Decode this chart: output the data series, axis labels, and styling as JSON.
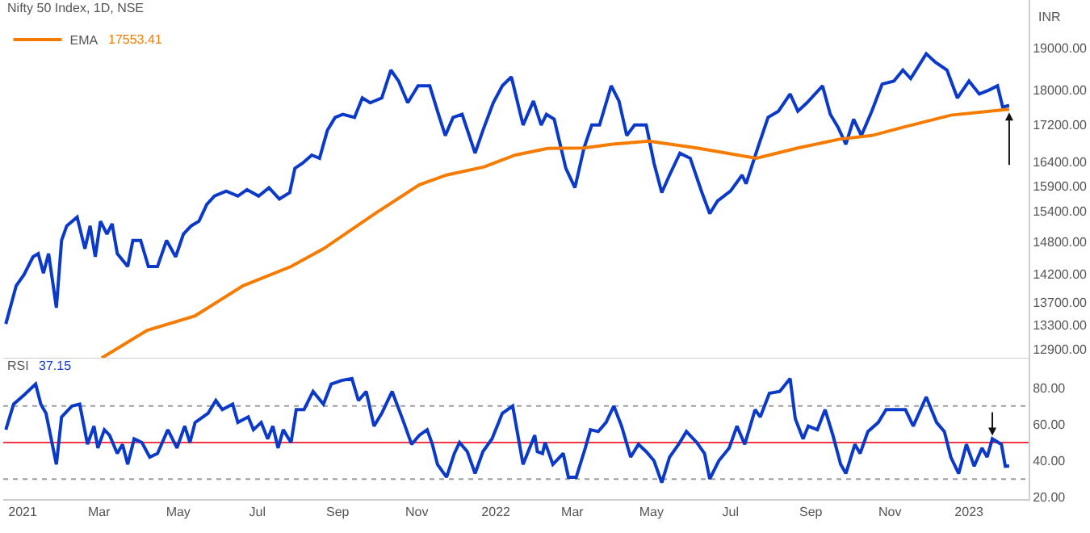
{
  "chart_data": [
    {
      "type": "line",
      "title": "Nifty 50 Index, 1D, NSE",
      "ylabel": "INR",
      "log": "y",
      "legend": "top left",
      "tick_labels": "y",
      "grid": false,
      "marker": "none",
      "line_style": "solid",
      "xlim": [
        "2020-12-17",
        "2023-02-16"
      ],
      "ylim": [
        12740,
        20200
      ],
      "yticks": [
        {
          "value": 12900,
          "label": "12900.00"
        },
        {
          "value": 13300,
          "label": "13300.00"
        },
        {
          "value": 13700,
          "label": "13700.00"
        },
        {
          "value": 14200,
          "label": "14200.00"
        },
        {
          "value": 14800,
          "label": "14800.00"
        },
        {
          "value": 15400,
          "label": "15400.00"
        },
        {
          "value": 15900,
          "label": "15900.00"
        },
        {
          "value": 16400,
          "label": "16400.00"
        },
        {
          "value": 17200,
          "label": "17200.00"
        },
        {
          "value": 18000,
          "label": "18000.00"
        },
        {
          "value": 19000,
          "label": "19000.00"
        }
      ],
      "annotations": [
        "17553.41"
      ],
      "series": [
        {
          "color": "#0b3ac8",
          "x": [
            "2020-12-19",
            "2020-12-27",
            "2021-01-02",
            "2021-01-09",
            "2021-01-13",
            "2021-01-17",
            "2021-01-21",
            "2021-01-27",
            "2021-01-31",
            "2021-02-04",
            "2021-02-12",
            "2021-02-18",
            "2021-02-22",
            "2021-02-26",
            "2021-03-02",
            "2021-03-07",
            "2021-03-11",
            "2021-03-15",
            "2021-03-23",
            "2021-03-27",
            "2021-04-02",
            "2021-04-08",
            "2021-04-15",
            "2021-04-22",
            "2021-04-29",
            "2021-05-05",
            "2021-05-11",
            "2021-05-17",
            "2021-05-23",
            "2021-05-29",
            "2021-06-07",
            "2021-06-16",
            "2021-06-23",
            "2021-07-02",
            "2021-07-10",
            "2021-07-18",
            "2021-07-26",
            "2021-07-30",
            "2021-08-05",
            "2021-08-12",
            "2021-08-18",
            "2021-08-24",
            "2021-08-30",
            "2021-09-05",
            "2021-09-14",
            "2021-09-20",
            "2021-09-26",
            "2021-10-05",
            "2021-10-12",
            "2021-10-18",
            "2021-10-25",
            "2021-11-02",
            "2021-11-11",
            "2021-11-17",
            "2021-11-23",
            "2021-11-29",
            "2021-12-06",
            "2021-12-16",
            "2021-12-22",
            "2021-12-30",
            "2022-01-06",
            "2022-01-13",
            "2022-01-22",
            "2022-01-30",
            "2022-02-05",
            "2022-02-09",
            "2022-02-15",
            "2022-02-24",
            "2022-03-03",
            "2022-03-10",
            "2022-03-16",
            "2022-03-22",
            "2022-03-31",
            "2022-04-06",
            "2022-04-12",
            "2022-04-18",
            "2022-04-27",
            "2022-05-03",
            "2022-05-09",
            "2022-05-15",
            "2022-05-23",
            "2022-05-31",
            "2022-06-09",
            "2022-06-15",
            "2022-06-21",
            "2022-07-01",
            "2022-07-10",
            "2022-07-13",
            "2022-07-22",
            "2022-07-30",
            "2022-08-07",
            "2022-08-16",
            "2022-08-22",
            "2022-08-29",
            "2022-09-10",
            "2022-09-16",
            "2022-09-22",
            "2022-09-28",
            "2022-10-04",
            "2022-10-10",
            "2022-10-18",
            "2022-10-26",
            "2022-11-04",
            "2022-11-11",
            "2022-11-17",
            "2022-11-29",
            "2022-12-06",
            "2022-12-15",
            "2022-12-23",
            "2023-01-01",
            "2023-01-09",
            "2023-01-17",
            "2023-01-23",
            "2023-01-27",
            "2023-02-01"
          ],
          "values": [
            13320,
            13990,
            14190,
            14520,
            14580,
            14220,
            14580,
            13600,
            14830,
            15110,
            15280,
            14670,
            15110,
            14520,
            15200,
            14950,
            15150,
            14580,
            14340,
            14830,
            14830,
            14340,
            14340,
            14830,
            14520,
            14950,
            15110,
            15200,
            15530,
            15700,
            15800,
            15700,
            15830,
            15700,
            15870,
            15640,
            15770,
            16270,
            16380,
            16550,
            16480,
            17080,
            17370,
            17440,
            17370,
            17810,
            17700,
            17810,
            18460,
            18200,
            17700,
            18090,
            18090,
            17510,
            16970,
            17370,
            17440,
            16590,
            17080,
            17700,
            18090,
            18300,
            17200,
            17740,
            17200,
            17440,
            17330,
            16270,
            15870,
            16700,
            17200,
            17200,
            18090,
            17740,
            16970,
            17200,
            17200,
            16380,
            15770,
            16130,
            16590,
            16480,
            15770,
            15350,
            15600,
            15800,
            16130,
            15950,
            16700,
            17370,
            17510,
            17900,
            17510,
            17700,
            18090,
            17440,
            17150,
            16780,
            17330,
            16970,
            17510,
            18130,
            18200,
            18460,
            18260,
            18850,
            18650,
            18460,
            17810,
            18200,
            17900,
            18000,
            18090,
            17600,
            17640
          ]
        },
        {
          "name": "EMA",
          "color": "#f57c00",
          "x": [
            "2021-03-03",
            "2021-04-07",
            "2021-05-14",
            "2021-06-20",
            "2021-07-27",
            "2021-08-21",
            "2021-10-01",
            "2021-11-03",
            "2021-11-24",
            "2021-12-23",
            "2022-01-16",
            "2022-02-10",
            "2022-03-10",
            "2022-03-31",
            "2022-04-29",
            "2022-06-05",
            "2022-07-21",
            "2022-08-22",
            "2022-09-23",
            "2022-10-18",
            "2022-11-11",
            "2022-12-18",
            "2023-02-01"
          ],
          "values": [
            12750,
            13210,
            13460,
            13990,
            14340,
            14670,
            15370,
            15930,
            16130,
            16300,
            16550,
            16690,
            16700,
            16780,
            16850,
            16700,
            16480,
            16700,
            16890,
            16970,
            17150,
            17420,
            17553.41
          ]
        }
      ]
    },
    {
      "type": "line",
      "title": "RSI",
      "grid": false,
      "marker": "none",
      "line_style": "solid",
      "xlim": [
        "2020-12-17",
        "2023-02-16"
      ],
      "ylim": [
        19,
        96
      ],
      "xticks": [
        {
          "value": "2021-01-01",
          "label": "2021"
        },
        {
          "value": "2021-03-01",
          "label": "Mar"
        },
        {
          "value": "2021-05-01",
          "label": "May"
        },
        {
          "value": "2021-07-01",
          "label": "Jul"
        },
        {
          "value": "2021-09-01",
          "label": "Sep"
        },
        {
          "value": "2021-11-01",
          "label": "Nov"
        },
        {
          "value": "2022-01-01",
          "label": "2022"
        },
        {
          "value": "2022-03-01",
          "label": "Mar"
        },
        {
          "value": "2022-05-01",
          "label": "May"
        },
        {
          "value": "2022-07-01",
          "label": "Jul"
        },
        {
          "value": "2022-09-01",
          "label": "Sep"
        },
        {
          "value": "2022-11-01",
          "label": "Nov"
        },
        {
          "value": "2023-01-01",
          "label": "2023"
        }
      ],
      "yticks": [
        {
          "value": 20,
          "label": "20.00"
        },
        {
          "value": 40,
          "label": "40.00"
        },
        {
          "value": 60,
          "label": "60.00"
        },
        {
          "value": 80,
          "label": "80.00"
        }
      ],
      "annotations": [
        "37.15"
      ],
      "ref_lines": [
        {
          "axis": "y",
          "value": 70,
          "color": "#9e9e9e",
          "line_style": "dotted"
        },
        {
          "axis": "y",
          "value": 50,
          "color": "#f23645",
          "line_style": "solid"
        },
        {
          "axis": "y",
          "value": 30,
          "color": "#9e9e9e",
          "line_style": "dotted"
        }
      ],
      "series": [
        {
          "color": "#0b3ac8",
          "x": [
            "2020-12-19",
            "2020-12-25",
            "2021-01-02",
            "2021-01-11",
            "2021-01-15",
            "2021-01-19",
            "2021-01-27",
            "2021-01-31",
            "2021-02-08",
            "2021-02-14",
            "2021-02-20",
            "2021-02-25",
            "2021-02-28",
            "2021-03-05",
            "2021-03-09",
            "2021-03-15",
            "2021-03-19",
            "2021-03-23",
            "2021-03-28",
            "2021-04-03",
            "2021-04-09",
            "2021-04-15",
            "2021-04-23",
            "2021-04-30",
            "2021-05-06",
            "2021-05-10",
            "2021-05-14",
            "2021-05-24",
            "2021-05-30",
            "2021-06-04",
            "2021-06-12",
            "2021-06-16",
            "2021-06-24",
            "2021-06-28",
            "2021-07-04",
            "2021-07-09",
            "2021-07-13",
            "2021-07-17",
            "2021-07-21",
            "2021-07-27",
            "2021-07-31",
            "2021-08-06",
            "2021-08-13",
            "2021-08-21",
            "2021-08-27",
            "2021-09-04",
            "2021-09-12",
            "2021-09-17",
            "2021-09-23",
            "2021-09-29",
            "2021-10-05",
            "2021-10-13",
            "2021-10-22",
            "2021-10-28",
            "2021-11-03",
            "2021-11-09",
            "2021-11-13",
            "2021-11-17",
            "2021-11-24",
            "2021-11-30",
            "2021-12-04",
            "2021-12-10",
            "2021-12-16",
            "2021-12-22",
            "2021-12-29",
            "2022-01-06",
            "2022-01-14",
            "2022-01-22",
            "2022-01-31",
            "2022-02-02",
            "2022-02-06",
            "2022-02-08",
            "2022-02-14",
            "2022-02-22",
            "2022-02-26",
            "2022-03-04",
            "2022-03-11",
            "2022-03-15",
            "2022-03-21",
            "2022-03-27",
            "2022-04-02",
            "2022-04-08",
            "2022-04-15",
            "2022-04-21",
            "2022-04-27",
            "2022-05-03",
            "2022-05-09",
            "2022-05-15",
            "2022-05-22",
            "2022-05-28",
            "2022-06-05",
            "2022-06-11",
            "2022-06-15",
            "2022-06-22",
            "2022-06-30",
            "2022-07-06",
            "2022-07-12",
            "2022-07-20",
            "2022-07-24",
            "2022-07-31",
            "2022-08-08",
            "2022-08-16",
            "2022-08-20",
            "2022-08-26",
            "2022-08-30",
            "2022-09-06",
            "2022-09-12",
            "2022-09-18",
            "2022-09-24",
            "2022-09-28",
            "2022-10-05",
            "2022-10-09",
            "2022-10-15",
            "2022-10-23",
            "2022-10-29",
            "2022-11-06",
            "2022-11-13",
            "2022-11-19",
            "2022-11-29",
            "2022-12-07",
            "2022-12-13",
            "2022-12-18",
            "2022-12-24",
            "2022-12-30",
            "2023-01-05",
            "2023-01-11",
            "2023-01-15",
            "2023-01-19",
            "2023-01-26",
            "2023-01-29",
            "2023-02-01"
          ],
          "values": [
            57,
            71,
            76,
            82,
            71,
            66,
            38,
            64,
            70,
            71,
            49,
            59,
            47,
            57,
            54,
            44,
            49,
            38,
            52,
            50,
            42,
            44,
            57,
            47,
            59,
            50,
            61,
            66,
            73,
            68,
            71,
            61,
            64,
            57,
            61,
            52,
            59,
            47,
            57,
            50,
            68,
            68,
            78,
            71,
            82,
            84,
            85,
            73,
            78,
            59,
            66,
            78,
            61,
            49,
            54,
            57,
            49,
            38,
            31,
            44,
            50,
            45,
            33,
            45,
            52,
            66,
            70,
            38,
            54,
            45,
            44,
            50,
            38,
            44,
            31,
            31,
            47,
            57,
            56,
            61,
            70,
            59,
            42,
            49,
            45,
            40,
            28,
            42,
            49,
            56,
            50,
            44,
            30,
            40,
            47,
            59,
            49,
            68,
            64,
            77,
            78,
            85,
            63,
            52,
            59,
            57,
            68,
            54,
            38,
            33,
            49,
            44,
            56,
            61,
            68,
            68,
            68,
            59,
            75,
            61,
            56,
            42,
            33,
            49,
            37,
            47,
            42,
            52,
            49,
            37,
            37.15
          ]
        }
      ]
    }
  ]
}
